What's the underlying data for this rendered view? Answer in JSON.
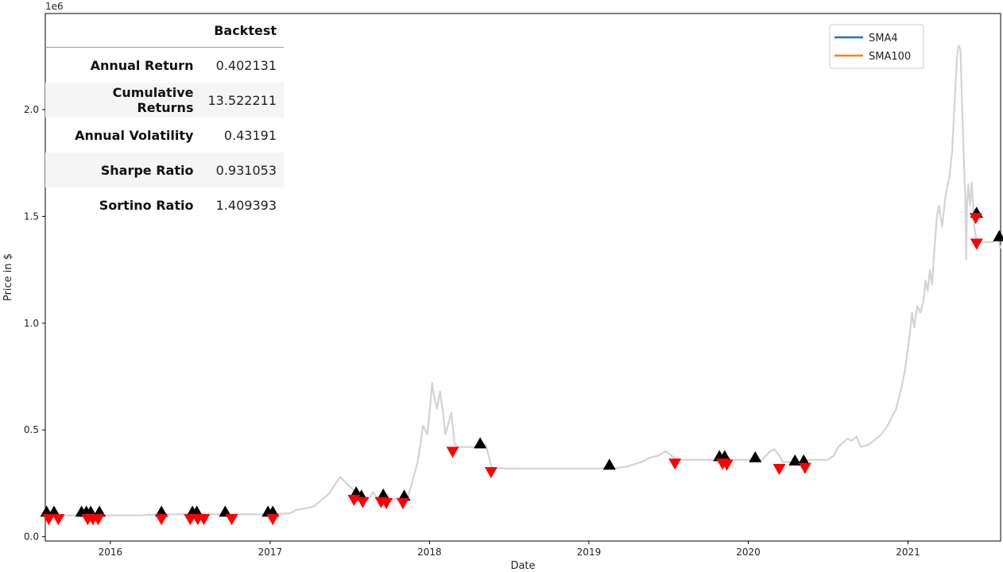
{
  "chart_data": {
    "type": "line",
    "offset_label": "1e6",
    "xlabel": "Date",
    "ylabel": "Price in $",
    "xlim": [
      "2015-08-05",
      "2021-08-01"
    ],
    "ylim": [
      -0.02,
      2.45
    ],
    "x_ticks": [
      {
        "date": "2016-01-01",
        "label": "2016"
      },
      {
        "date": "2017-01-01",
        "label": "2017"
      },
      {
        "date": "2018-01-01",
        "label": "2018"
      },
      {
        "date": "2019-01-01",
        "label": "2019"
      },
      {
        "date": "2020-01-01",
        "label": "2020"
      },
      {
        "date": "2021-01-01",
        "label": "2021"
      }
    ],
    "y_ticks": [
      {
        "value": 0.0,
        "label": "0.0"
      },
      {
        "value": 0.5,
        "label": "0.5"
      },
      {
        "value": 1.0,
        "label": "1.0"
      },
      {
        "value": 1.5,
        "label": "1.5"
      },
      {
        "value": 2.0,
        "label": "2.0"
      }
    ],
    "legend": {
      "position": "top-right",
      "entries": [
        {
          "name": "SMA4",
          "color": "#1f77b4"
        },
        {
          "name": "SMA100",
          "color": "#ff7f0e"
        }
      ]
    },
    "series": [
      {
        "color": "#d3d3d3",
        "points": [
          [
            "2015-08-05",
            0.1
          ],
          [
            "2015-11-01",
            0.1
          ],
          [
            "2016-03-01",
            0.1
          ],
          [
            "2016-06-01",
            0.105
          ],
          [
            "2016-09-01",
            0.105
          ],
          [
            "2017-01-01",
            0.105
          ],
          [
            "2017-02-15",
            0.11
          ],
          [
            "2017-03-01",
            0.125
          ],
          [
            "2017-04-10",
            0.14
          ],
          [
            "2017-05-15",
            0.2
          ],
          [
            "2017-06-10",
            0.28
          ],
          [
            "2017-06-25",
            0.25
          ],
          [
            "2017-07-05",
            0.23
          ],
          [
            "2017-07-15",
            0.21
          ],
          [
            "2017-07-25",
            0.19
          ],
          [
            "2017-08-05",
            0.18
          ],
          [
            "2017-08-15",
            0.175
          ],
          [
            "2017-08-25",
            0.21
          ],
          [
            "2017-09-05",
            0.17
          ],
          [
            "2017-09-15",
            0.175
          ],
          [
            "2017-09-25",
            0.2
          ],
          [
            "2017-10-05",
            0.17
          ],
          [
            "2017-10-20",
            0.18
          ],
          [
            "2017-11-01",
            0.18
          ],
          [
            "2017-11-10",
            0.17
          ],
          [
            "2017-11-20",
            0.24
          ],
          [
            "2017-11-28",
            0.3
          ],
          [
            "2017-12-05",
            0.35
          ],
          [
            "2017-12-10",
            0.42
          ],
          [
            "2017-12-17",
            0.52
          ],
          [
            "2017-12-22",
            0.5
          ],
          [
            "2017-12-27",
            0.48
          ],
          [
            "2018-01-03",
            0.62
          ],
          [
            "2018-01-07",
            0.72
          ],
          [
            "2018-01-12",
            0.65
          ],
          [
            "2018-01-18",
            0.6
          ],
          [
            "2018-01-25",
            0.68
          ],
          [
            "2018-02-01",
            0.58
          ],
          [
            "2018-02-06",
            0.48
          ],
          [
            "2018-02-12",
            0.52
          ],
          [
            "2018-02-20",
            0.58
          ],
          [
            "2018-02-27",
            0.44
          ],
          [
            "2018-03-05",
            0.42
          ],
          [
            "2018-03-15",
            0.42
          ],
          [
            "2018-04-20",
            0.42
          ],
          [
            "2018-05-01",
            0.44
          ],
          [
            "2018-05-10",
            0.43
          ],
          [
            "2018-05-20",
            0.35
          ],
          [
            "2018-05-25",
            0.32
          ],
          [
            "2018-09-01",
            0.32
          ],
          [
            "2019-01-01",
            0.32
          ],
          [
            "2019-02-01",
            0.32
          ],
          [
            "2019-02-15",
            0.33
          ],
          [
            "2019-03-01",
            0.32
          ],
          [
            "2019-04-01",
            0.33
          ],
          [
            "2019-05-01",
            0.35
          ],
          [
            "2019-05-20",
            0.37
          ],
          [
            "2019-06-10",
            0.38
          ],
          [
            "2019-06-25",
            0.4
          ],
          [
            "2019-07-10",
            0.38
          ],
          [
            "2019-07-20",
            0.36
          ],
          [
            "2019-08-01",
            0.36
          ],
          [
            "2019-10-01",
            0.36
          ],
          [
            "2019-11-01",
            0.36
          ],
          [
            "2019-12-01",
            0.36
          ],
          [
            "2020-01-01",
            0.36
          ],
          [
            "2020-02-01",
            0.36
          ],
          [
            "2020-02-20",
            0.4
          ],
          [
            "2020-03-01",
            0.41
          ],
          [
            "2020-03-12",
            0.38
          ],
          [
            "2020-03-20",
            0.35
          ],
          [
            "2020-04-01",
            0.35
          ],
          [
            "2020-04-15",
            0.35
          ],
          [
            "2020-05-01",
            0.35
          ],
          [
            "2020-05-10",
            0.36
          ],
          [
            "2020-06-01",
            0.36
          ],
          [
            "2020-06-15",
            0.36
          ],
          [
            "2020-07-01",
            0.36
          ],
          [
            "2020-07-15",
            0.38
          ],
          [
            "2020-07-25",
            0.42
          ],
          [
            "2020-08-05",
            0.44
          ],
          [
            "2020-08-15",
            0.46
          ],
          [
            "2020-08-25",
            0.45
          ],
          [
            "2020-09-05",
            0.47
          ],
          [
            "2020-09-15",
            0.42
          ],
          [
            "2020-10-01",
            0.43
          ],
          [
            "2020-10-15",
            0.45
          ],
          [
            "2020-11-01",
            0.48
          ],
          [
            "2020-11-15",
            0.52
          ],
          [
            "2020-11-25",
            0.56
          ],
          [
            "2020-12-05",
            0.6
          ],
          [
            "2020-12-15",
            0.68
          ],
          [
            "2020-12-25",
            0.78
          ],
          [
            "2021-01-05",
            0.95
          ],
          [
            "2021-01-10",
            1.05
          ],
          [
            "2021-01-15",
            0.98
          ],
          [
            "2021-01-22",
            1.08
          ],
          [
            "2021-01-29",
            1.05
          ],
          [
            "2021-02-05",
            1.1
          ],
          [
            "2021-02-10",
            1.2
          ],
          [
            "2021-02-15",
            1.15
          ],
          [
            "2021-02-20",
            1.25
          ],
          [
            "2021-02-25",
            1.18
          ],
          [
            "2021-03-01",
            1.3
          ],
          [
            "2021-03-08",
            1.5
          ],
          [
            "2021-03-13",
            1.55
          ],
          [
            "2021-03-20",
            1.45
          ],
          [
            "2021-03-28",
            1.6
          ],
          [
            "2021-04-05",
            1.68
          ],
          [
            "2021-04-12",
            1.8
          ],
          [
            "2021-04-18",
            2.05
          ],
          [
            "2021-04-23",
            2.25
          ],
          [
            "2021-04-27",
            2.3
          ],
          [
            "2021-05-01",
            2.28
          ],
          [
            "2021-05-05",
            2.0
          ],
          [
            "2021-05-09",
            1.75
          ],
          [
            "2021-05-12",
            1.6
          ],
          [
            "2021-05-14",
            1.3
          ],
          [
            "2021-05-16",
            1.55
          ],
          [
            "2021-05-19",
            1.65
          ],
          [
            "2021-05-23",
            1.55
          ],
          [
            "2021-05-27",
            1.66
          ],
          [
            "2021-06-02",
            1.45
          ],
          [
            "2021-06-07",
            1.38
          ],
          [
            "2021-06-15",
            1.38
          ],
          [
            "2021-07-01",
            1.38
          ],
          [
            "2021-07-15",
            1.38
          ],
          [
            "2021-07-25",
            1.4
          ],
          [
            "2021-08-01",
            1.35
          ]
        ]
      }
    ],
    "buy_signals": {
      "color": "#000000",
      "points": [
        [
          "2015-08-08",
          0.12
        ],
        [
          "2015-08-25",
          0.12
        ],
        [
          "2015-10-27",
          0.12
        ],
        [
          "2015-11-07",
          0.12
        ],
        [
          "2015-11-17",
          0.12
        ],
        [
          "2015-12-07",
          0.12
        ],
        [
          "2016-04-27",
          0.12
        ],
        [
          "2016-07-07",
          0.12
        ],
        [
          "2016-07-17",
          0.12
        ],
        [
          "2016-09-20",
          0.12
        ],
        [
          "2016-12-27",
          0.12
        ],
        [
          "2017-01-07",
          0.12
        ],
        [
          "2017-07-17",
          0.21
        ],
        [
          "2017-07-29",
          0.195
        ],
        [
          "2017-09-17",
          0.2
        ],
        [
          "2017-11-04",
          0.195
        ],
        [
          "2018-04-27",
          0.44
        ],
        [
          "2019-02-17",
          0.34
        ],
        [
          "2019-10-27",
          0.38
        ],
        [
          "2019-11-08",
          0.38
        ],
        [
          "2020-01-17",
          0.375
        ],
        [
          "2020-04-17",
          0.36
        ],
        [
          "2020-05-07",
          0.36
        ],
        [
          "2021-06-07",
          1.52
        ],
        [
          "2021-07-29",
          1.41
        ]
      ]
    },
    "sell_signals": {
      "color": "#ff0000",
      "points": [
        [
          "2015-08-13",
          0.08
        ],
        [
          "2015-09-04",
          0.08
        ],
        [
          "2015-11-10",
          0.08
        ],
        [
          "2015-11-22",
          0.08
        ],
        [
          "2015-12-04",
          0.08
        ],
        [
          "2016-04-27",
          0.08
        ],
        [
          "2016-07-02",
          0.08
        ],
        [
          "2016-07-19",
          0.08
        ],
        [
          "2016-08-02",
          0.08
        ],
        [
          "2016-10-05",
          0.08
        ],
        [
          "2017-01-07",
          0.08
        ],
        [
          "2017-07-12",
          0.17
        ],
        [
          "2017-08-01",
          0.16
        ],
        [
          "2017-09-12",
          0.16
        ],
        [
          "2017-09-24",
          0.155
        ],
        [
          "2017-11-01",
          0.155
        ],
        [
          "2018-02-23",
          0.395
        ],
        [
          "2018-05-22",
          0.3
        ],
        [
          "2019-07-17",
          0.34
        ],
        [
          "2019-11-03",
          0.34
        ],
        [
          "2019-11-13",
          0.335
        ],
        [
          "2020-03-12",
          0.315
        ],
        [
          "2020-05-10",
          0.32
        ],
        [
          "2021-06-05",
          1.49
        ],
        [
          "2021-06-07",
          1.37
        ]
      ]
    }
  },
  "stats_table": {
    "header": "Backtest",
    "rows": [
      {
        "label": "Annual Return",
        "value": "0.402131"
      },
      {
        "label": "Cumulative Returns",
        "value": "13.522211"
      },
      {
        "label": "Annual Volatility",
        "value": "0.43191"
      },
      {
        "label": "Sharpe Ratio",
        "value": "0.931053"
      },
      {
        "label": "Sortino Ratio",
        "value": "1.409393"
      }
    ]
  }
}
